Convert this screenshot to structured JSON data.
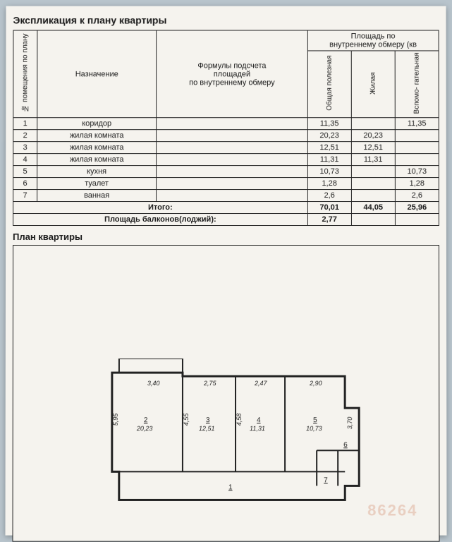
{
  "title": "Экспликация к плану квартиры",
  "headers": {
    "col_num": "№ помещения\nпо плану",
    "col_name": "Назначение",
    "col_formula": "Формулы подсчета\nплощадей\nпо внутреннему обмеру",
    "col_group": "Площадь по\nвнутреннему обмеру (кв",
    "col_total": "Общая\nполезная",
    "col_living": "Жилая",
    "col_aux": "Вспомо-\nгательная"
  },
  "rows": [
    {
      "num": "1",
      "name": "коридор",
      "total": "11,35",
      "living": "",
      "aux": "11,35"
    },
    {
      "num": "2",
      "name": "жилая комната",
      "total": "20,23",
      "living": "20,23",
      "aux": ""
    },
    {
      "num": "3",
      "name": "жилая комната",
      "total": "12,51",
      "living": "12,51",
      "aux": ""
    },
    {
      "num": "4",
      "name": "жилая комната",
      "total": "11,31",
      "living": "11,31",
      "aux": ""
    },
    {
      "num": "5",
      "name": "кухня",
      "total": "10,73",
      "living": "",
      "aux": "10,73"
    },
    {
      "num": "6",
      "name": "туалет",
      "total": "1,28",
      "living": "",
      "aux": "1,28"
    },
    {
      "num": "7",
      "name": "ванная",
      "total": "2,6",
      "living": "",
      "aux": "2,6"
    }
  ],
  "totals": {
    "label": "Итого:",
    "total": "70,01",
    "living": "44,05",
    "aux": "25,96"
  },
  "balcony": {
    "label": "Площадь балконов(лоджий):",
    "value": "2,77"
  },
  "plan_title": "План квартиры",
  "plan": {
    "rooms": [
      {
        "id": "2",
        "area": "20,23",
        "w": "3,40",
        "h": "5,95"
      },
      {
        "id": "3",
        "area": "12,51",
        "w": "2,75",
        "h": "4,55"
      },
      {
        "id": "4",
        "area": "11,31",
        "w": "2,47",
        "h": "4,58"
      },
      {
        "id": "5",
        "area": "10,73",
        "w": "2,90",
        "h": "3,70"
      },
      {
        "id": "1",
        "area": "",
        "w": "",
        "h": ""
      },
      {
        "id": "6",
        "area": "",
        "w": "",
        "h": ""
      },
      {
        "id": "7",
        "area": "",
        "w": "",
        "h": ""
      }
    ]
  },
  "watermark": "86264",
  "colors": {
    "paper": "#f5f3ee",
    "bg": "#b8c4cc",
    "line": "#222222"
  }
}
